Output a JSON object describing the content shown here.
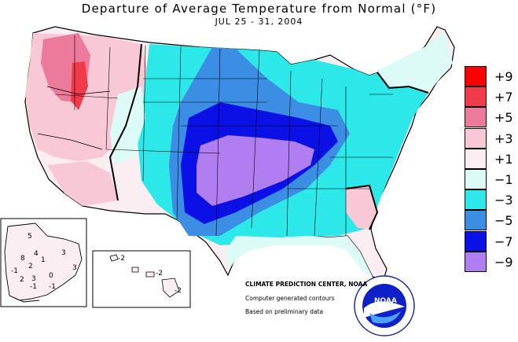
{
  "title": "Departure of Average Temperature from Normal (°F)",
  "subtitle": "JUL 25 - 31, 2004",
  "legend": {
    "items": [
      {
        "label": "+9",
        "color": "#ff0000"
      },
      {
        "label": "+7",
        "color": "#f03c4a"
      },
      {
        "label": "+5",
        "color": "#ec7a9a"
      },
      {
        "label": "+3",
        "color": "#f9c8d6"
      },
      {
        "label": "+1",
        "color": "#fbeef2"
      },
      {
        "label": "−1",
        "color": "#dcfbf6"
      },
      {
        "label": "−3",
        "color": "#2ce8e8"
      },
      {
        "label": "−5",
        "color": "#3c8ee4"
      },
      {
        "label": "−7",
        "color": "#0a10e6"
      },
      {
        "label": "−9",
        "color": "#b07ef0"
      }
    ]
  },
  "credits": {
    "center": "CLIMATE PREDICTION CENTER, NOAA",
    "line1": "Computer generated contours",
    "line2": "Based on preliminary data"
  },
  "logo": {
    "text": "NOAA"
  },
  "alaska_values": [
    "5",
    "4",
    "3",
    "8",
    "1",
    "2",
    "3",
    "-1",
    "2",
    "3",
    "0",
    "-1",
    "-1"
  ],
  "hawaii_values": [
    "-2",
    "-2",
    "-2"
  ]
}
